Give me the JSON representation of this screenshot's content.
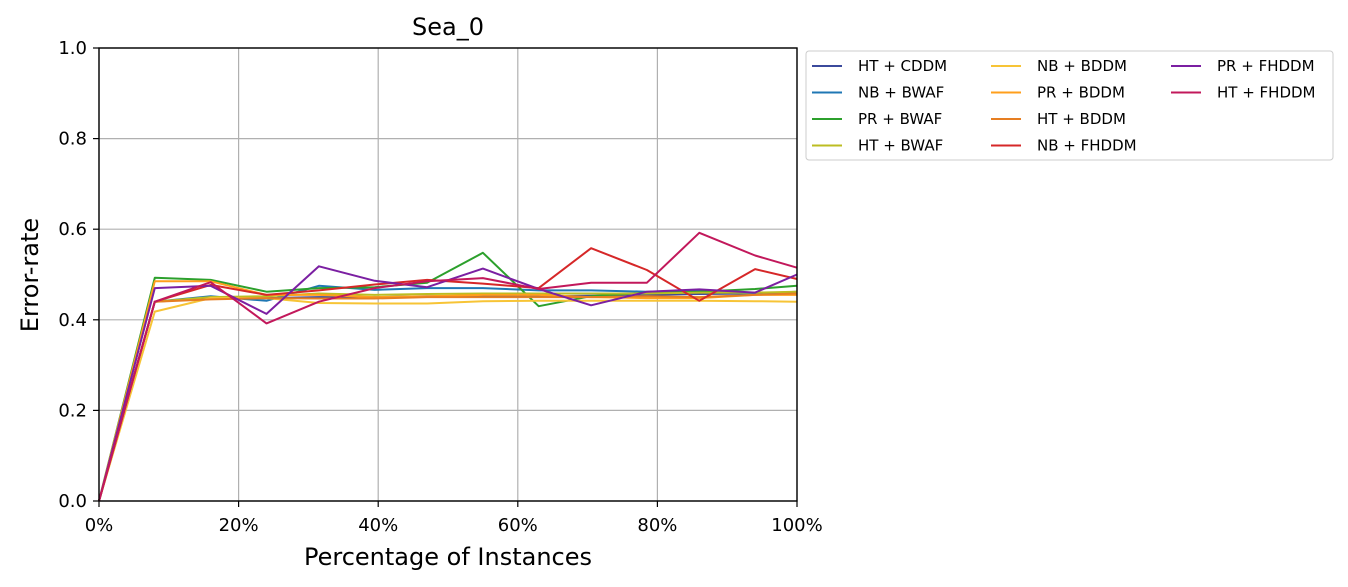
{
  "chart_data": {
    "type": "line",
    "title": "Sea_0",
    "xlabel": "Percentage of Instances",
    "ylabel": "Error-rate",
    "xlim": [
      0,
      100
    ],
    "ylim": [
      0,
      1.0
    ],
    "x_ticks": [
      0,
      20,
      40,
      60,
      80,
      100
    ],
    "x_tick_labels": [
      "0%",
      "20%",
      "40%",
      "60%",
      "80%",
      "100%"
    ],
    "y_ticks": [
      0,
      0.2,
      0.4,
      0.6,
      0.8,
      1.0
    ],
    "y_tick_labels": [
      "0.0",
      "0.2",
      "0.4",
      "0.6",
      "0.8",
      "1.0"
    ],
    "grid": true,
    "legend_position": "outside-right-top",
    "legend_columns": 3,
    "x": [
      0,
      8,
      16,
      24,
      31.5,
      39.5,
      47,
      55,
      63,
      70.5,
      78.5,
      86,
      94,
      100
    ],
    "series": [
      {
        "name": "HT + CDDM",
        "color": "#3b4a9c",
        "values": [
          0,
          0.44,
          0.448,
          0.448,
          0.45,
          0.45,
          0.452,
          0.452,
          0.452,
          0.453,
          0.455,
          0.457,
          0.458,
          0.462
        ]
      },
      {
        "name": "NB + BWAF",
        "color": "#1f77b4",
        "values": [
          0,
          0.44,
          0.452,
          0.442,
          0.475,
          0.466,
          0.47,
          0.47,
          0.465,
          0.465,
          0.462,
          0.465,
          0.456,
          0.458
        ]
      },
      {
        "name": "PR + BWAF",
        "color": "#2ca02c",
        "values": [
          0,
          0.493,
          0.488,
          0.462,
          0.47,
          0.472,
          0.482,
          0.548,
          0.43,
          0.452,
          0.46,
          0.462,
          0.468,
          0.475
        ]
      },
      {
        "name": "HT + BWAF",
        "color": "#bcbd22",
        "values": [
          0,
          0.44,
          0.45,
          0.452,
          0.458,
          0.455,
          0.457,
          0.458,
          0.458,
          0.458,
          0.458,
          0.46,
          0.46,
          0.462
        ]
      },
      {
        "name": "NB + BDDM",
        "color": "#f7c436",
        "values": [
          0,
          0.418,
          0.448,
          0.448,
          0.437,
          0.436,
          0.436,
          0.441,
          0.442,
          0.442,
          0.442,
          0.442,
          0.441,
          0.44
        ]
      },
      {
        "name": "PR + BDDM",
        "color": "#ff9f1c",
        "values": [
          0,
          0.485,
          0.485,
          0.455,
          0.455,
          0.45,
          0.452,
          0.455,
          0.455,
          0.45,
          0.448,
          0.448,
          0.455,
          0.455
        ]
      },
      {
        "name": "HT + BDDM",
        "color": "#e67e22",
        "values": [
          0,
          0.44,
          0.445,
          0.448,
          0.447,
          0.447,
          0.45,
          0.45,
          0.45,
          0.45,
          0.452,
          0.45,
          0.455,
          0.458
        ]
      },
      {
        "name": "NB + FHDDM",
        "color": "#d62728",
        "values": [
          0,
          0.44,
          0.477,
          0.455,
          0.465,
          0.478,
          0.488,
          0.48,
          0.47,
          0.558,
          0.51,
          0.442,
          0.512,
          0.49
        ]
      },
      {
        "name": "PR + FHDDM",
        "color": "#7b1fa2",
        "values": [
          0,
          0.47,
          0.475,
          0.413,
          0.518,
          0.486,
          0.472,
          0.513,
          0.468,
          0.432,
          0.462,
          0.467,
          0.46,
          0.5
        ]
      },
      {
        "name": "HT + FHDDM",
        "color": "#c2185b",
        "values": [
          0,
          0.44,
          0.483,
          0.392,
          0.44,
          0.47,
          0.485,
          0.492,
          0.468,
          0.482,
          0.482,
          0.592,
          0.542,
          0.515
        ]
      }
    ]
  }
}
